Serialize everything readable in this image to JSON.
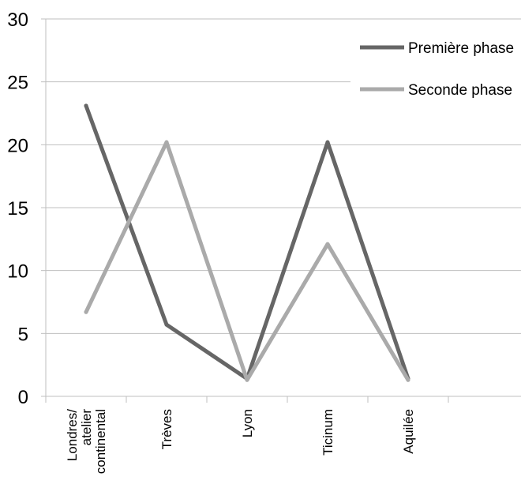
{
  "chart_data": {
    "type": "line",
    "categories": [
      "Londres/\natelier\ncontinental",
      "Trèves",
      "Lyon",
      "Ticinum",
      "Aquilée"
    ],
    "series": [
      {
        "name": "Première phase",
        "values": [
          23.1,
          5.7,
          1.4,
          20.2,
          1.4
        ],
        "color": "#666666"
      },
      {
        "name": "Seconde phase",
        "values": [
          6.7,
          20.2,
          1.3,
          12.1,
          1.3
        ],
        "color": "#AAAAAA"
      }
    ],
    "yticks": [
      0,
      5,
      10,
      15,
      20,
      25,
      30
    ],
    "ylim": [
      0,
      30
    ],
    "grid": true,
    "legend_position": "top-right"
  }
}
